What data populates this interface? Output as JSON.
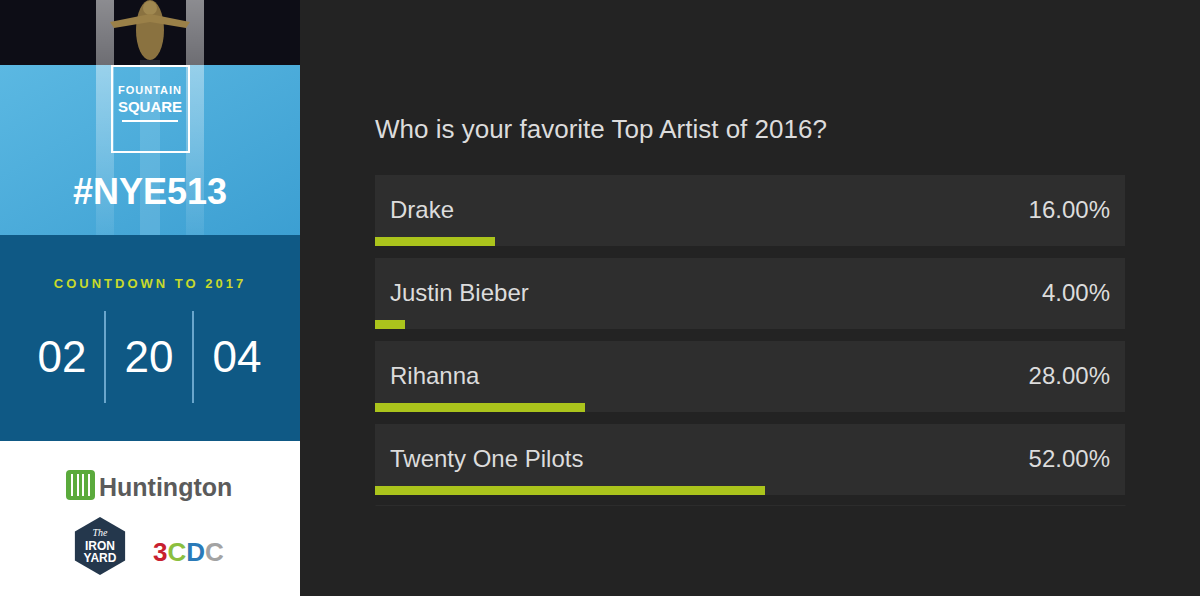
{
  "chart_data": {
    "type": "bar",
    "orientation": "horizontal",
    "title": "Who is your favorite Top Artist of 2016?",
    "categories": [
      "Drake",
      "Justin Bieber",
      "Rihanna",
      "Twenty One Pilots"
    ],
    "values": [
      16,
      4,
      28,
      52
    ],
    "value_labels": [
      "16.00%",
      "4.00%",
      "28.00%",
      "52.00%"
    ],
    "data_labels": true,
    "color": "#abc41c",
    "xlim": [
      0,
      100
    ],
    "tick_labels": false
  },
  "sidebar": {
    "logo": {
      "line1": "FOUNTAIN",
      "line2": "SQUARE"
    },
    "hashtag": "#NYE513",
    "countdown": {
      "label": "COUNTDOWN TO 2017",
      "values": [
        "02",
        "20",
        "04"
      ]
    },
    "sponsors": {
      "huntington": "Huntington",
      "iron_yard": [
        "The",
        "IRON",
        "YARD"
      ],
      "cdc": "3CDC"
    }
  }
}
